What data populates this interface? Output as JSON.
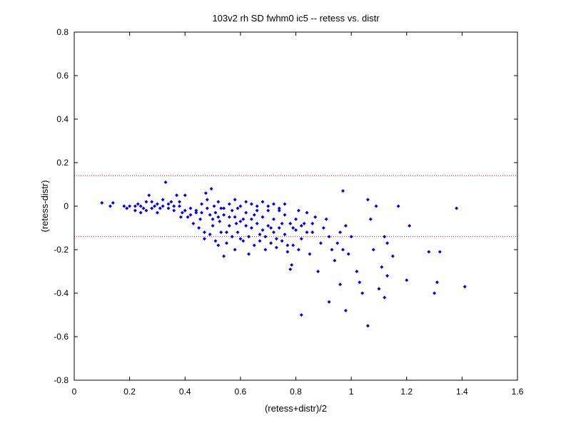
{
  "chart_data": {
    "type": "scatter",
    "title": "103v2 rh SD fwhm0 ic5 -- retess vs. distr",
    "xlabel": "(retess+distr)/2",
    "ylabel": "(retess-distr)",
    "xlim": [
      0,
      1.6
    ],
    "ylim": [
      -0.8,
      0.8
    ],
    "xticks": [
      0,
      0.2,
      0.4,
      0.6,
      0.8,
      1,
      1.2,
      1.4,
      1.6
    ],
    "yticks": [
      -0.8,
      -0.6,
      -0.4,
      -0.2,
      0,
      0.2,
      0.4,
      0.6,
      0.8
    ],
    "xtick_labels": [
      "0",
      "0.2",
      "0.4",
      "0.6",
      "0.8",
      "1",
      "1.2",
      "1.4",
      "1.6"
    ],
    "ytick_labels": [
      "-0.8",
      "-0.6",
      "-0.4",
      "-0.2",
      "0",
      "0.2",
      "0.4",
      "0.6",
      "0.8"
    ],
    "grid": false,
    "point_color": "#0000ff",
    "reference_line_color": "#ff0000",
    "reference_lines_y": [
      0.14,
      -0.14
    ],
    "points": [
      [
        0.1,
        0.015
      ],
      [
        0.14,
        0.015
      ],
      [
        0.13,
        0.0
      ],
      [
        0.18,
        0.0
      ],
      [
        0.19,
        -0.01
      ],
      [
        0.2,
        0.0
      ],
      [
        0.22,
        -0.02
      ],
      [
        0.23,
        0.01
      ],
      [
        0.24,
        0.0
      ],
      [
        0.25,
        -0.01
      ],
      [
        0.26,
        -0.02
      ],
      [
        0.27,
        0.05
      ],
      [
        0.28,
        0.02
      ],
      [
        0.29,
        0.0
      ],
      [
        0.3,
        -0.03
      ],
      [
        0.31,
        -0.01
      ],
      [
        0.32,
        0.0
      ],
      [
        0.33,
        0.11
      ],
      [
        0.34,
        0.01
      ],
      [
        0.35,
        0.02
      ],
      [
        0.36,
        -0.02
      ],
      [
        0.37,
        0.05
      ],
      [
        0.38,
        0.0
      ],
      [
        0.385,
        -0.05
      ],
      [
        0.39,
        -0.03
      ],
      [
        0.4,
        0.05
      ],
      [
        0.41,
        -0.05
      ],
      [
        0.42,
        -0.01
      ],
      [
        0.43,
        -0.08
      ],
      [
        0.44,
        -0.02
      ],
      [
        0.45,
        -0.1
      ],
      [
        0.455,
        -0.06
      ],
      [
        0.46,
        -0.03
      ],
      [
        0.47,
        -0.12
      ],
      [
        0.475,
        0.06
      ],
      [
        0.48,
        -0.01
      ],
      [
        0.49,
        -0.04
      ],
      [
        0.495,
        0.08
      ],
      [
        0.5,
        -0.09
      ],
      [
        0.505,
        0.0
      ],
      [
        0.51,
        -0.03
      ],
      [
        0.52,
        -0.18
      ],
      [
        0.525,
        -0.07
      ],
      [
        0.53,
        -0.01
      ],
      [
        0.54,
        -0.23
      ],
      [
        0.55,
        -0.12
      ],
      [
        0.56,
        -0.05
      ],
      [
        0.57,
        -0.02
      ],
      [
        0.58,
        -0.2
      ],
      [
        0.585,
        -0.08
      ],
      [
        0.59,
        -0.01
      ],
      [
        0.6,
        -0.15
      ],
      [
        0.61,
        -0.06
      ],
      [
        0.62,
        -0.03
      ],
      [
        0.63,
        -0.22
      ],
      [
        0.64,
        -0.1
      ],
      [
        0.65,
        -0.04
      ],
      [
        0.66,
        0.0
      ],
      [
        0.67,
        -0.13
      ],
      [
        0.68,
        -0.05
      ],
      [
        0.69,
        -0.2
      ],
      [
        0.7,
        -0.02
      ],
      [
        0.71,
        -0.1
      ],
      [
        0.72,
        -0.06
      ],
      [
        0.73,
        -0.15
      ],
      [
        0.74,
        -0.01
      ],
      [
        0.75,
        -0.08
      ],
      [
        0.76,
        -0.04
      ],
      [
        0.77,
        -0.18
      ],
      [
        0.78,
        -0.29
      ],
      [
        0.785,
        -0.27
      ],
      [
        0.79,
        -0.1
      ],
      [
        0.8,
        -0.06
      ],
      [
        0.81,
        -0.02
      ],
      [
        0.82,
        -0.15
      ],
      [
        0.83,
        -0.08
      ],
      [
        0.84,
        -0.03
      ],
      [
        0.85,
        -0.22
      ],
      [
        0.86,
        -0.12
      ],
      [
        0.87,
        -0.05
      ],
      [
        0.88,
        -0.3
      ],
      [
        0.89,
        -0.17
      ],
      [
        0.9,
        -0.1
      ],
      [
        0.91,
        -0.06
      ],
      [
        0.92,
        -0.14
      ],
      [
        0.93,
        -0.2
      ],
      [
        0.94,
        -0.25
      ],
      [
        0.95,
        -0.17
      ],
      [
        0.96,
        -0.12
      ],
      [
        0.97,
        -0.2
      ],
      [
        0.98,
        -0.09
      ],
      [
        0.99,
        -0.22
      ],
      [
        1.0,
        -0.14
      ],
      [
        1.02,
        -0.3
      ],
      [
        1.03,
        -0.35
      ],
      [
        1.04,
        -0.4
      ],
      [
        1.06,
        0.03
      ],
      [
        1.07,
        -0.06
      ],
      [
        1.08,
        -0.2
      ],
      [
        1.09,
        0.0
      ],
      [
        1.1,
        -0.38
      ],
      [
        1.11,
        -0.28
      ],
      [
        1.12,
        -0.14
      ],
      [
        1.13,
        -0.17
      ],
      [
        1.15,
        -0.23
      ],
      [
        1.17,
        0.0
      ],
      [
        1.2,
        -0.34
      ],
      [
        1.21,
        -0.09
      ],
      [
        1.28,
        -0.21
      ],
      [
        1.3,
        -0.4
      ],
      [
        1.31,
        -0.35
      ],
      [
        1.32,
        -0.21
      ],
      [
        1.38,
        -0.01
      ],
      [
        1.41,
        -0.37
      ],
      [
        0.82,
        -0.5
      ],
      [
        0.97,
        0.07
      ],
      [
        1.06,
        -0.55
      ],
      [
        0.98,
        -0.48
      ],
      [
        0.92,
        -0.44
      ],
      [
        1.12,
        -0.42
      ],
      [
        0.96,
        -0.36
      ],
      [
        1.13,
        -0.32
      ],
      [
        0.46,
        0.01
      ],
      [
        0.48,
        0.03
      ],
      [
        0.52,
        0.02
      ],
      [
        0.54,
        -0.01
      ],
      [
        0.56,
        0.01
      ],
      [
        0.58,
        0.03
      ],
      [
        0.6,
        0.0
      ],
      [
        0.62,
        0.02
      ],
      [
        0.64,
        0.01
      ],
      [
        0.66,
        -0.02
      ],
      [
        0.68,
        0.02
      ],
      [
        0.7,
        0.0
      ],
      [
        0.72,
        0.01
      ],
      [
        0.74,
        -0.02
      ],
      [
        0.76,
        0.01
      ],
      [
        0.5,
        -0.06
      ],
      [
        0.52,
        -0.05
      ],
      [
        0.54,
        -0.04
      ],
      [
        0.56,
        -0.09
      ],
      [
        0.58,
        -0.05
      ],
      [
        0.6,
        -0.07
      ],
      [
        0.62,
        -0.09
      ],
      [
        0.64,
        -0.06
      ],
      [
        0.66,
        -0.08
      ],
      [
        0.68,
        -0.11
      ],
      [
        0.7,
        -0.09
      ],
      [
        0.72,
        -0.12
      ],
      [
        0.74,
        -0.1
      ],
      [
        0.76,
        -0.13
      ],
      [
        0.78,
        -0.08
      ],
      [
        0.8,
        -0.11
      ],
      [
        0.82,
        -0.09
      ],
      [
        0.84,
        -0.12
      ],
      [
        0.86,
        -0.08
      ],
      [
        0.44,
        -0.03
      ],
      [
        0.42,
        -0.04
      ],
      [
        0.4,
        -0.02
      ],
      [
        0.38,
        0.02
      ],
      [
        0.36,
        0.0
      ],
      [
        0.34,
        -0.01
      ],
      [
        0.32,
        0.03
      ],
      [
        0.3,
        0.01
      ],
      [
        0.28,
        -0.01
      ],
      [
        0.26,
        0.02
      ],
      [
        0.24,
        -0.03
      ],
      [
        0.22,
        0.0
      ],
      [
        0.47,
        -0.15
      ],
      [
        0.49,
        -0.13
      ],
      [
        0.51,
        -0.16
      ],
      [
        0.53,
        -0.12
      ],
      [
        0.55,
        -0.17
      ],
      [
        0.57,
        -0.14
      ],
      [
        0.59,
        -0.12
      ],
      [
        0.61,
        -0.16
      ],
      [
        0.63,
        -0.14
      ],
      [
        0.65,
        -0.18
      ],
      [
        0.67,
        -0.16
      ],
      [
        0.69,
        -0.14
      ],
      [
        0.71,
        -0.17
      ],
      [
        0.73,
        -0.19
      ],
      [
        0.75,
        -0.16
      ],
      [
        0.77,
        -0.21
      ],
      [
        0.79,
        -0.18
      ],
      [
        0.81,
        -0.2
      ]
    ]
  }
}
